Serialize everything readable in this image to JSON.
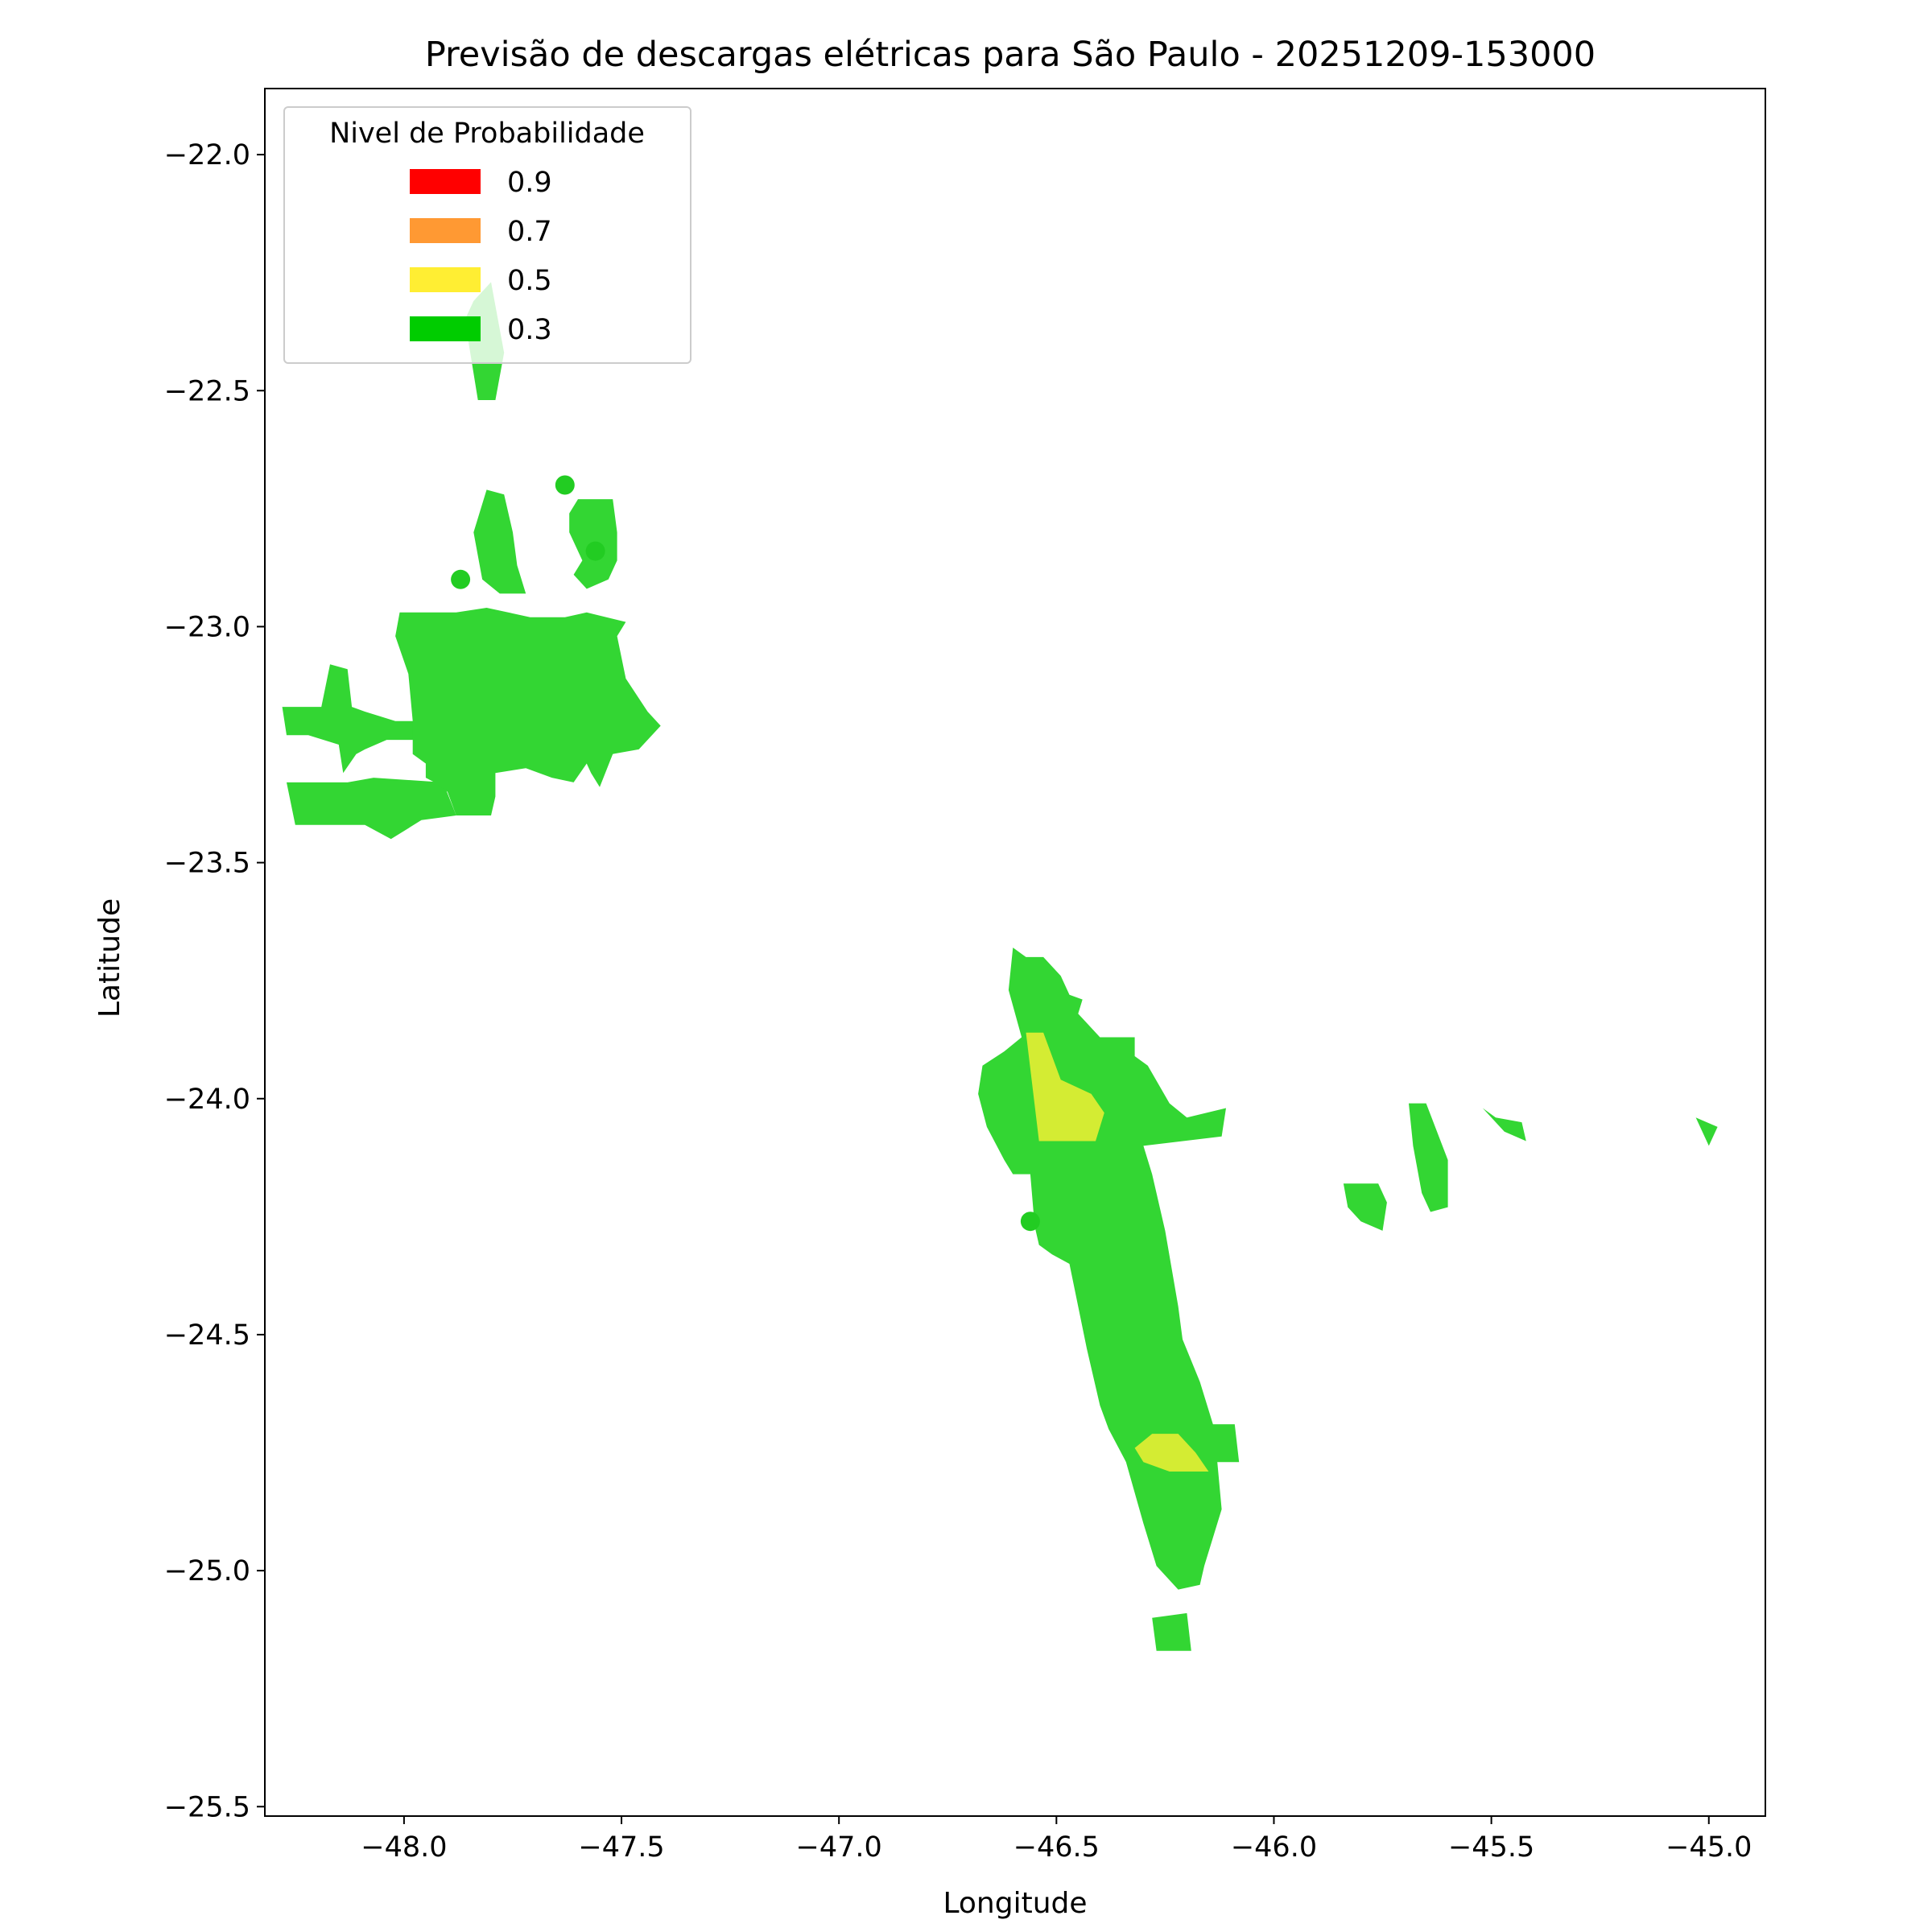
{
  "chart_data": {
    "type": "heatmap",
    "title": "Previsão de descargas elétricas para São Paulo - 20251209-153000",
    "xlabel": "Longitude",
    "ylabel": "Latitude",
    "xlim": [
      -48.32,
      -44.87
    ],
    "ylim": [
      -25.52,
      -21.86
    ],
    "x_ticks": [
      -48.0,
      -47.5,
      -47.0,
      -46.5,
      -46.0,
      -45.5,
      -45.0
    ],
    "x_tick_labels": [
      "−48.0",
      "−47.5",
      "−47.0",
      "−46.5",
      "−46.0",
      "−45.5",
      "−45.0"
    ],
    "y_ticks": [
      -22.0,
      -22.5,
      -23.0,
      -23.5,
      -24.0,
      -24.5,
      -25.0,
      -25.5
    ],
    "y_tick_labels": [
      "−22.0",
      "−22.5",
      "−23.0",
      "−23.5",
      "−24.0",
      "−24.5",
      "−25.0",
      "−25.5"
    ],
    "grid": false,
    "legend": {
      "title": "Nivel de Probabilidade",
      "placement": "top-left",
      "entries": [
        {
          "label": "0.9",
          "color": "#ff0000"
        },
        {
          "label": "0.7",
          "color": "#ff9933"
        },
        {
          "label": "0.5",
          "color": "#ffee33"
        },
        {
          "label": "0.3",
          "color": "#00cc00"
        }
      ]
    },
    "fill_colors": {
      "0.3": "#33d633",
      "0.5": "#d4ec33"
    },
    "regions": [
      {
        "level": "0.3",
        "points": [
          [
            -47.84,
            -22.31
          ],
          [
            -47.8,
            -22.27
          ],
          [
            -47.77,
            -22.42
          ],
          [
            -47.79,
            -22.52
          ],
          [
            -47.83,
            -22.52
          ],
          [
            -47.86,
            -22.35
          ]
        ]
      },
      {
        "level": "0.3",
        "points": [
          [
            -48.07,
            -23.32
          ],
          [
            -47.91,
            -23.33
          ],
          [
            -47.88,
            -23.4
          ],
          [
            -47.96,
            -23.41
          ],
          [
            -48.03,
            -23.45
          ],
          [
            -48.09,
            -23.42
          ],
          [
            -48.14,
            -23.42
          ],
          [
            -48.25,
            -23.42
          ],
          [
            -48.27,
            -23.33
          ],
          [
            -48.13,
            -23.33
          ]
        ]
      },
      {
        "level": "0.3",
        "points": [
          [
            -48.17,
            -23.08
          ],
          [
            -48.13,
            -23.09
          ],
          [
            -48.12,
            -23.17
          ],
          [
            -48.09,
            -23.18
          ],
          [
            -48.02,
            -23.2
          ],
          [
            -47.98,
            -23.2
          ],
          [
            -47.92,
            -23.21
          ],
          [
            -47.93,
            -23.24
          ],
          [
            -48.04,
            -23.24
          ],
          [
            -48.09,
            -23.26
          ],
          [
            -48.11,
            -23.27
          ],
          [
            -48.14,
            -23.31
          ],
          [
            -48.15,
            -23.25
          ],
          [
            -48.22,
            -23.23
          ],
          [
            -48.27,
            -23.23
          ],
          [
            -48.28,
            -23.17
          ],
          [
            -48.19,
            -23.17
          ]
        ]
      },
      {
        "level": "0.3",
        "points": [
          [
            -48.01,
            -22.97
          ],
          [
            -47.88,
            -22.97
          ],
          [
            -47.81,
            -22.96
          ],
          [
            -47.71,
            -22.98
          ],
          [
            -47.63,
            -22.98
          ],
          [
            -47.58,
            -22.97
          ],
          [
            -47.49,
            -22.99
          ],
          [
            -47.51,
            -23.02
          ],
          [
            -47.49,
            -23.11
          ],
          [
            -47.44,
            -23.18
          ],
          [
            -47.41,
            -23.21
          ],
          [
            -47.46,
            -23.26
          ],
          [
            -47.52,
            -23.27
          ],
          [
            -47.55,
            -23.34
          ],
          [
            -47.57,
            -23.31
          ],
          [
            -47.58,
            -23.29
          ],
          [
            -47.61,
            -23.33
          ],
          [
            -47.66,
            -23.32
          ],
          [
            -47.72,
            -23.3
          ],
          [
            -47.79,
            -23.31
          ],
          [
            -47.79,
            -23.36
          ],
          [
            -47.8,
            -23.4
          ],
          [
            -47.84,
            -23.4
          ],
          [
            -47.88,
            -23.4
          ],
          [
            -47.9,
            -23.35
          ],
          [
            -47.93,
            -23.33
          ],
          [
            -47.95,
            -23.32
          ],
          [
            -47.95,
            -23.29
          ],
          [
            -47.98,
            -23.27
          ],
          [
            -47.98,
            -23.2
          ],
          [
            -47.99,
            -23.1
          ],
          [
            -48.02,
            -23.02
          ]
        ]
      },
      {
        "level": "0.3",
        "points": [
          [
            -47.81,
            -22.71
          ],
          [
            -47.77,
            -22.72
          ],
          [
            -47.75,
            -22.8
          ],
          [
            -47.74,
            -22.87
          ],
          [
            -47.72,
            -22.93
          ],
          [
            -47.78,
            -22.93
          ],
          [
            -47.82,
            -22.9
          ],
          [
            -47.84,
            -22.8
          ]
        ]
      },
      {
        "level": "0.3",
        "points": [
          [
            -47.6,
            -22.73
          ],
          [
            -47.52,
            -22.73
          ],
          [
            -47.51,
            -22.8
          ],
          [
            -47.51,
            -22.86
          ],
          [
            -47.53,
            -22.9
          ],
          [
            -47.58,
            -22.92
          ],
          [
            -47.61,
            -22.89
          ],
          [
            -47.59,
            -22.86
          ],
          [
            -47.62,
            -22.8
          ],
          [
            -47.62,
            -22.76
          ]
        ]
      },
      {
        "level": "0.3",
        "points": [
          [
            -46.6,
            -23.68
          ],
          [
            -46.57,
            -23.7
          ],
          [
            -46.53,
            -23.7
          ],
          [
            -46.49,
            -23.74
          ],
          [
            -46.47,
            -23.78
          ],
          [
            -46.44,
            -23.79
          ],
          [
            -46.45,
            -23.82
          ],
          [
            -46.4,
            -23.87
          ],
          [
            -46.32,
            -23.87
          ],
          [
            -46.32,
            -23.91
          ],
          [
            -46.29,
            -23.93
          ],
          [
            -46.24,
            -24.01
          ],
          [
            -46.2,
            -24.04
          ],
          [
            -46.11,
            -24.02
          ],
          [
            -46.12,
            -24.08
          ],
          [
            -46.3,
            -24.1
          ],
          [
            -46.28,
            -24.16
          ],
          [
            -46.25,
            -24.28
          ],
          [
            -46.22,
            -24.44
          ],
          [
            -46.21,
            -24.51
          ],
          [
            -46.17,
            -24.6
          ],
          [
            -46.14,
            -24.69
          ],
          [
            -46.09,
            -24.69
          ],
          [
            -46.08,
            -24.77
          ],
          [
            -46.13,
            -24.77
          ],
          [
            -46.12,
            -24.87
          ],
          [
            -46.16,
            -24.99
          ],
          [
            -46.17,
            -25.03
          ],
          [
            -46.22,
            -25.04
          ],
          [
            -46.27,
            -24.99
          ],
          [
            -46.3,
            -24.9
          ],
          [
            -46.34,
            -24.77
          ],
          [
            -46.38,
            -24.7
          ],
          [
            -46.4,
            -24.65
          ],
          [
            -46.43,
            -24.53
          ],
          [
            -46.45,
            -24.44
          ],
          [
            -46.47,
            -24.35
          ],
          [
            -46.51,
            -24.33
          ],
          [
            -46.54,
            -24.31
          ],
          [
            -46.55,
            -24.27
          ],
          [
            -46.56,
            -24.16
          ],
          [
            -46.6,
            -24.16
          ],
          [
            -46.62,
            -24.13
          ],
          [
            -46.66,
            -24.06
          ],
          [
            -46.68,
            -23.99
          ],
          [
            -46.67,
            -23.93
          ],
          [
            -46.62,
            -23.9
          ],
          [
            -46.58,
            -23.87
          ],
          [
            -46.61,
            -23.77
          ]
        ]
      },
      {
        "level": "0.3",
        "points": [
          [
            -46.28,
            -25.1
          ],
          [
            -46.2,
            -25.09
          ],
          [
            -46.19,
            -25.17
          ],
          [
            -46.27,
            -25.17
          ]
        ]
      },
      {
        "level": "0.3",
        "points": [
          [
            -45.84,
            -24.18
          ],
          [
            -45.76,
            -24.18
          ],
          [
            -45.74,
            -24.22
          ],
          [
            -45.75,
            -24.28
          ],
          [
            -45.8,
            -24.26
          ],
          [
            -45.83,
            -24.23
          ]
        ]
      },
      {
        "level": "0.3",
        "points": [
          [
            -45.69,
            -24.01
          ],
          [
            -45.65,
            -24.01
          ],
          [
            -45.6,
            -24.13
          ],
          [
            -45.6,
            -24.23
          ],
          [
            -45.64,
            -24.24
          ],
          [
            -45.66,
            -24.2
          ],
          [
            -45.68,
            -24.1
          ]
        ]
      },
      {
        "level": "0.3",
        "points": [
          [
            -45.52,
            -24.02
          ],
          [
            -45.49,
            -24.04
          ],
          [
            -45.43,
            -24.05
          ],
          [
            -45.42,
            -24.09
          ],
          [
            -45.47,
            -24.07
          ]
        ]
      },
      {
        "level": "0.3",
        "points": [
          [
            -45.03,
            -24.04
          ],
          [
            -44.98,
            -24.06
          ],
          [
            -45.0,
            -24.1
          ]
        ]
      },
      {
        "level": "0.5",
        "points": [
          [
            -46.57,
            -23.86
          ],
          [
            -46.53,
            -23.86
          ],
          [
            -46.49,
            -23.96
          ],
          [
            -46.42,
            -23.99
          ],
          [
            -46.39,
            -24.03
          ],
          [
            -46.41,
            -24.09
          ],
          [
            -46.54,
            -24.09
          ]
        ]
      },
      {
        "level": "0.5",
        "points": [
          [
            -46.28,
            -24.71
          ],
          [
            -46.22,
            -24.71
          ],
          [
            -46.18,
            -24.75
          ],
          [
            -46.15,
            -24.79
          ],
          [
            -46.24,
            -24.79
          ],
          [
            -46.3,
            -24.77
          ],
          [
            -46.32,
            -24.74
          ]
        ]
      }
    ],
    "points": [
      {
        "x": -47.63,
        "y": -22.7
      },
      {
        "x": -47.56,
        "y": -22.84
      },
      {
        "x": -47.87,
        "y": -22.9
      },
      {
        "x": -46.56,
        "y": -24.26
      }
    ]
  }
}
